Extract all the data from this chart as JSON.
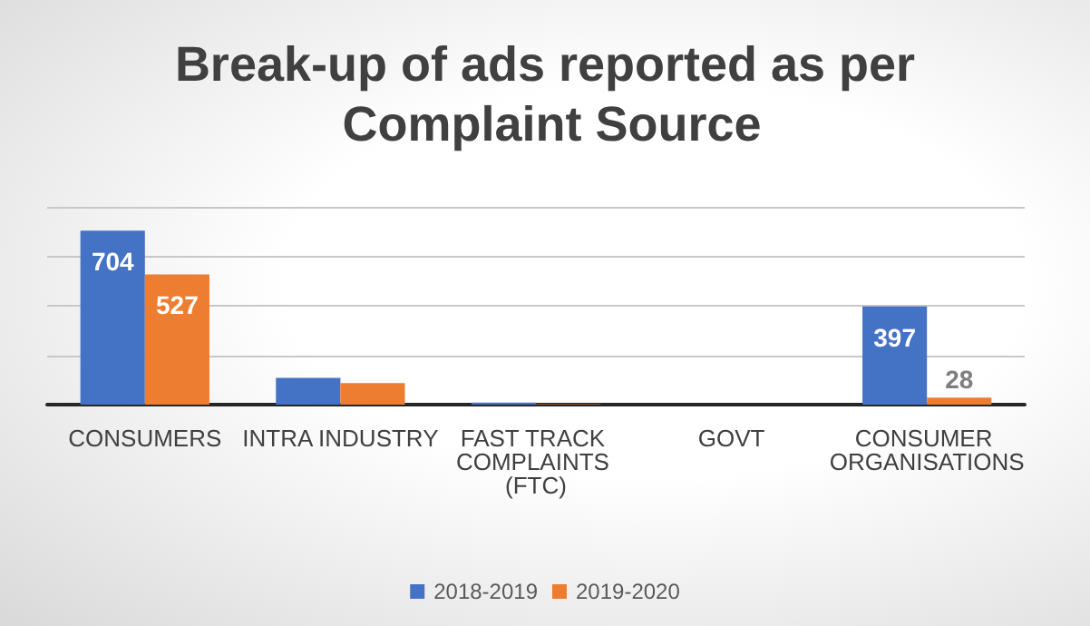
{
  "chart_data": {
    "type": "bar",
    "title": "Break-up of ads reported as per Complaint Source",
    "categories": [
      "CONSUMERS",
      "INTRA INDUSTRY",
      "FAST TRACK COMPLAINTS (FTC)",
      "GOVT",
      "CONSUMER ORGANISATIONS"
    ],
    "series": [
      {
        "name": "2018-2019",
        "color": "#4472c4",
        "values": [
          704,
          108,
          8,
          0,
          397
        ],
        "value_labels": [
          "704",
          null,
          null,
          null,
          "397"
        ]
      },
      {
        "name": "2019-2020",
        "color": "#ed7d31",
        "values": [
          527,
          87,
          2,
          0,
          28
        ],
        "value_labels": [
          "527",
          null,
          null,
          null,
          "28"
        ]
      }
    ],
    "ylim": [
      0,
      800
    ],
    "yticks": [
      {
        "value": 0,
        "label": null
      },
      {
        "value": 200,
        "label": null
      },
      {
        "value": 400,
        "label": null
      },
      {
        "value": 600,
        "label": null
      },
      {
        "value": 800,
        "label": null
      }
    ],
    "tick_labels": "x",
    "grid": "y",
    "legend": "bottom"
  }
}
